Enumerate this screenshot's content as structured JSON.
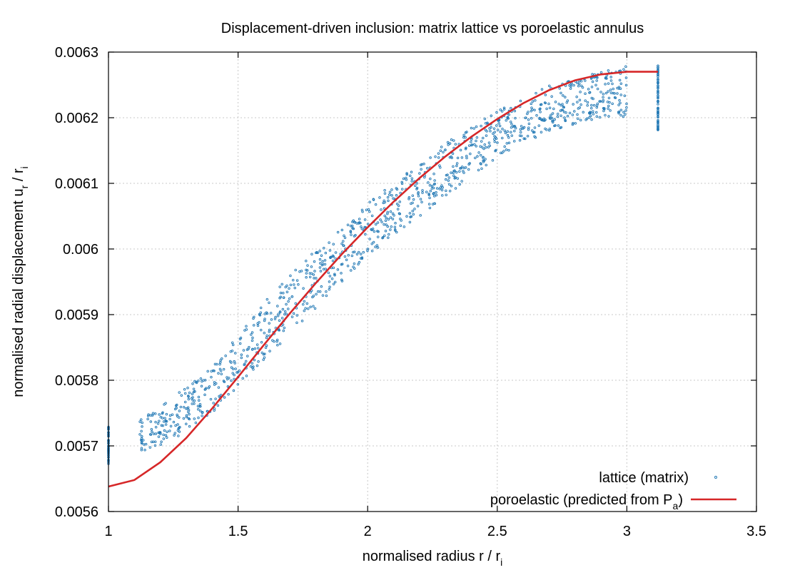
{
  "chart_data": {
    "type": "scatter",
    "title": "Displacement-driven inclusion: matrix lattice vs poroelastic annulus",
    "xlabel": "normalised radius  r / r",
    "xlabel_sub": "i",
    "ylabel": "normalised radial displacement  u",
    "ylabel_sub1": "r",
    "ylabel_mid": " / r",
    "ylabel_sub2": "i",
    "xlim": [
      1,
      3.5
    ],
    "ylim": [
      0.0056,
      0.0063
    ],
    "xticks": [
      1,
      1.5,
      2,
      2.5,
      3,
      3.5
    ],
    "xtick_labels": [
      "1",
      "1.5",
      "2",
      "2.5",
      "3",
      "3.5"
    ],
    "yticks": [
      0.0056,
      0.0057,
      0.0058,
      0.0059,
      0.006,
      0.0061,
      0.0062,
      0.0063
    ],
    "ytick_labels": [
      "0.0056",
      "0.0057",
      "0.0058",
      "0.0059",
      "0.006",
      "0.0061",
      "0.0062",
      "0.0063"
    ],
    "grid": true,
    "legend_position": "bottom-right",
    "series": [
      {
        "name": "lattice (matrix)",
        "kind": "scatter",
        "color": "#1f77b4",
        "inner_boundary": {
          "x": 1.0,
          "y_range": [
            0.00567,
            0.00573
          ]
        },
        "outer_boundary": {
          "x": 3.12,
          "y_range": [
            0.00618,
            0.00628
          ]
        },
        "band": {
          "x": [
            1.12,
            1.2,
            1.3,
            1.4,
            1.5,
            1.6,
            1.7,
            1.8,
            1.9,
            2.0,
            2.1,
            2.2,
            2.3,
            2.4,
            2.5,
            2.6,
            2.7,
            2.8,
            2.9,
            3.0
          ],
          "y_low": [
            0.00569,
            0.0057,
            0.00572,
            0.00575,
            0.00579,
            0.00583,
            0.00587,
            0.00591,
            0.00595,
            0.00599,
            0.00602,
            0.00605,
            0.00608,
            0.00611,
            0.00614,
            0.00616,
            0.00618,
            0.00619,
            0.0062,
            0.0062
          ],
          "y_high": [
            0.00574,
            0.00576,
            0.00579,
            0.00582,
            0.00587,
            0.00592,
            0.00596,
            0.006,
            0.00603,
            0.00607,
            0.0061,
            0.00613,
            0.00616,
            0.00619,
            0.00621,
            0.00623,
            0.00625,
            0.00626,
            0.00627,
            0.00628
          ]
        }
      },
      {
        "name": "poroelastic (predicted from P",
        "name_sub": "a",
        "name_suffix": ")",
        "kind": "line",
        "color": "#d62728",
        "x": [
          1.0,
          1.1,
          1.2,
          1.3,
          1.4,
          1.5,
          1.6,
          1.7,
          1.8,
          1.9,
          2.0,
          2.1,
          2.2,
          2.3,
          2.4,
          2.5,
          2.6,
          2.7,
          2.8,
          2.9,
          3.0,
          3.12
        ],
        "y": [
          0.005638,
          0.005648,
          0.005675,
          0.005712,
          0.005757,
          0.005805,
          0.005854,
          0.005902,
          0.005948,
          0.005992,
          0.006033,
          0.006072,
          0.006108,
          0.006141,
          0.006171,
          0.006198,
          0.006222,
          0.006242,
          0.006257,
          0.006266,
          0.00627,
          0.00627
        ]
      }
    ]
  }
}
